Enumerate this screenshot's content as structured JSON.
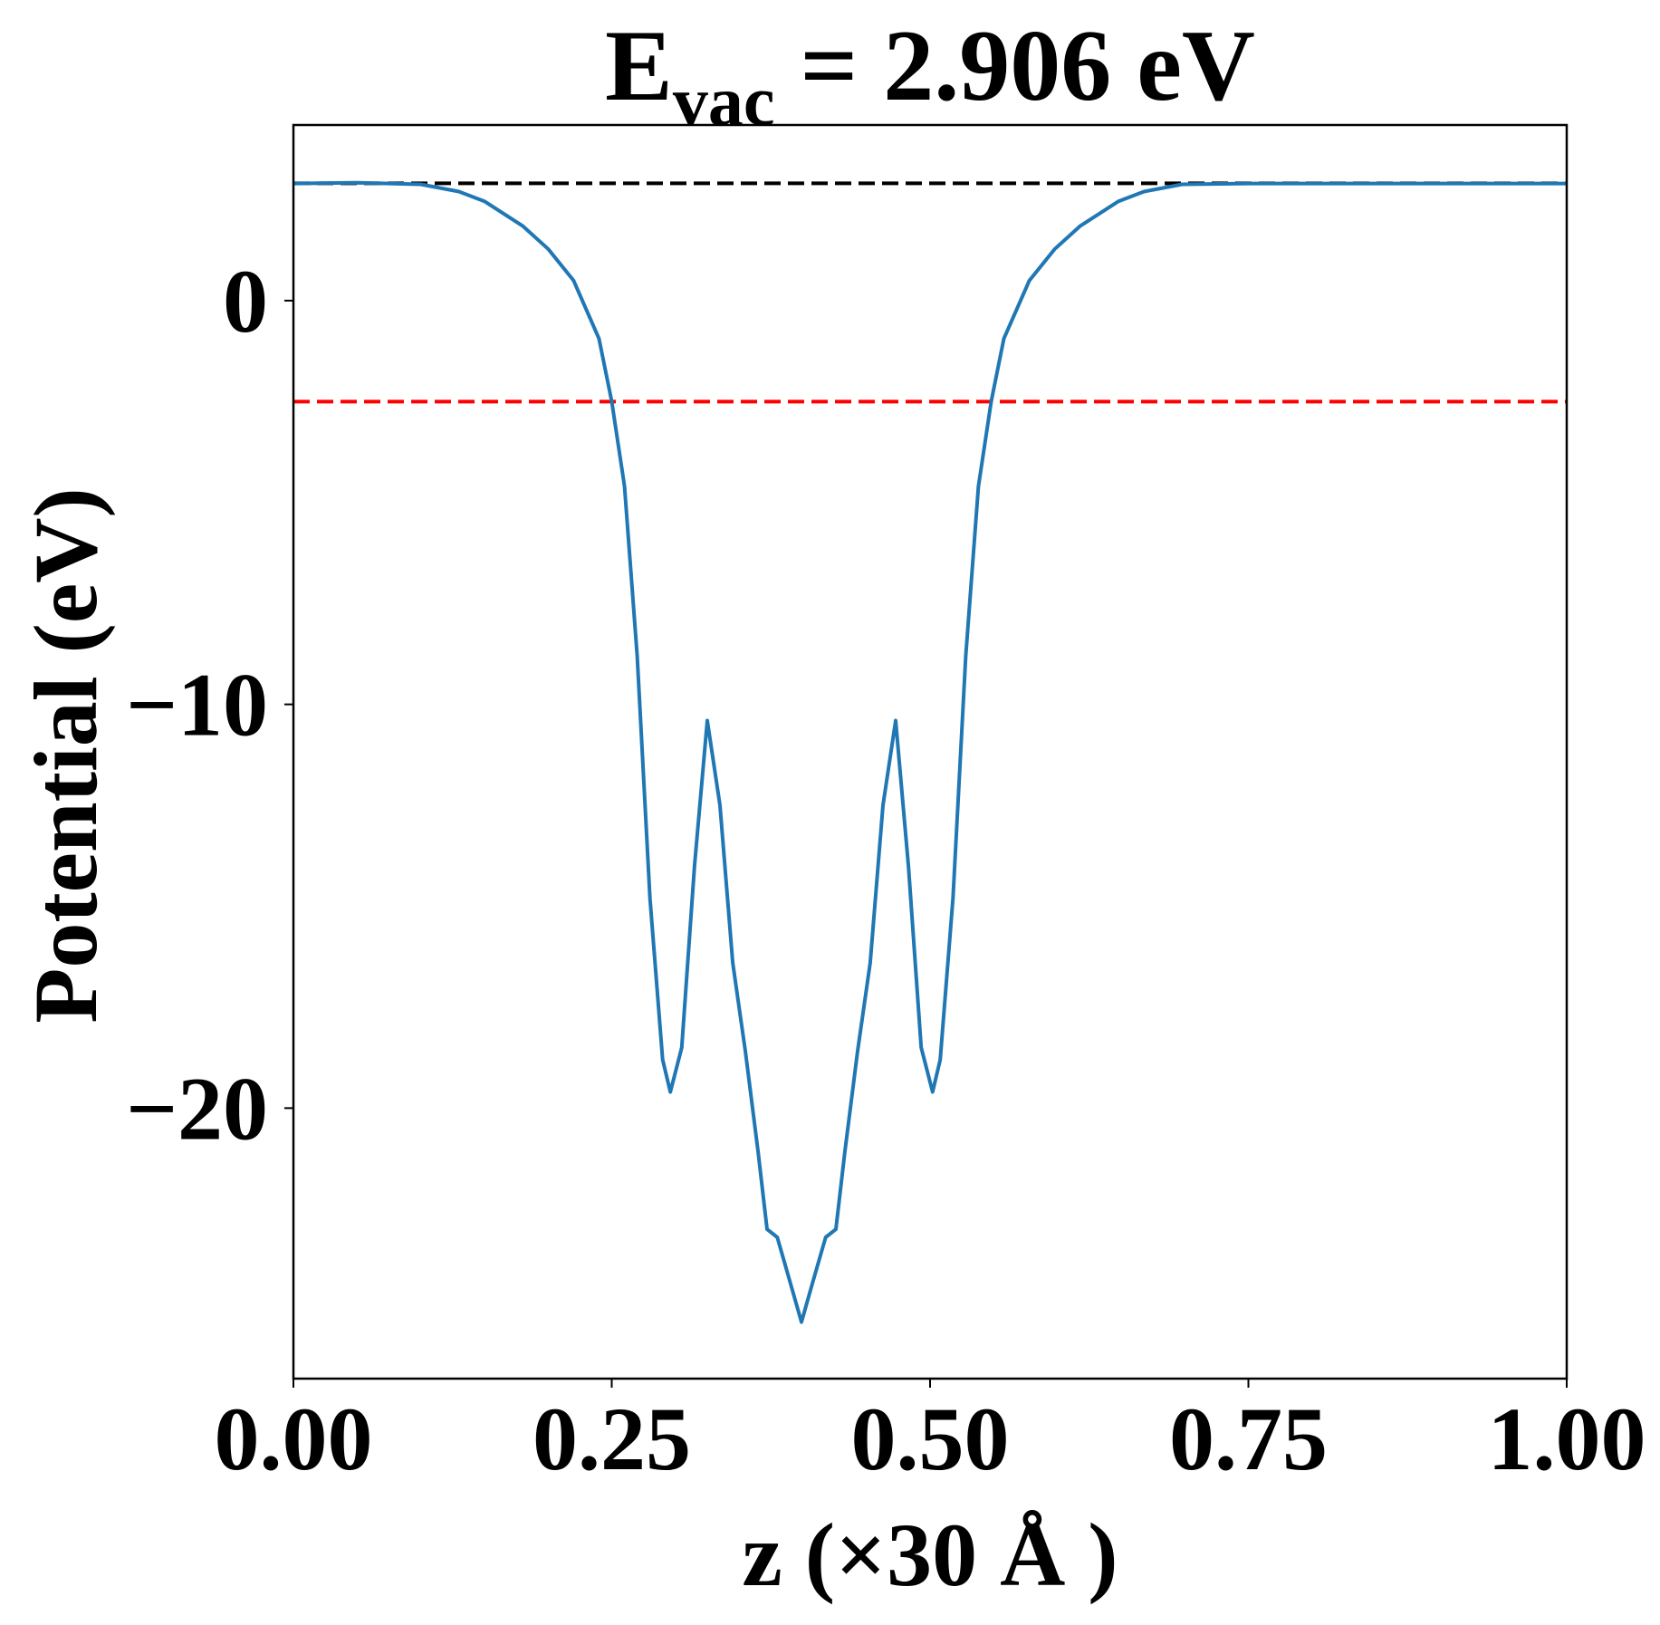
{
  "chart_data": {
    "type": "line",
    "title_parts": [
      "E",
      "vac",
      " = 2.906 eV"
    ],
    "x_label": "z (×30 Å )",
    "y_label": "Potential (eV)",
    "x": [
      0,
      0.05,
      0.1,
      0.13,
      0.15,
      0.18,
      0.2,
      0.22,
      0.24,
      0.25,
      0.26,
      0.27,
      0.28,
      0.29,
      0.296,
      0.305,
      0.315,
      0.325,
      0.335,
      0.345,
      0.355,
      0.365,
      0.372,
      0.38,
      0.39,
      0.399,
      0.408,
      0.418,
      0.426,
      0.433,
      0.443,
      0.453,
      0.463,
      0.473,
      0.483,
      0.493,
      0.502,
      0.508,
      0.518,
      0.528,
      0.538,
      0.548,
      0.558,
      0.578,
      0.598,
      0.618,
      0.648,
      0.668,
      0.698,
      0.75,
      0.8,
      0.9,
      1
    ],
    "series": [
      {
        "color": "#1f77b4",
        "values": [
          2.9,
          2.92,
          2.88,
          2.7,
          2.46,
          1.85,
          1.28,
          0.5,
          -0.94,
          -2.5,
          -4.6,
          -8.8,
          -14.8,
          -18.8,
          -19.6,
          -18.5,
          -14,
          -10.4,
          -12.5,
          -16.4,
          -18.6,
          -21.1,
          -23,
          -23.2,
          -24.3,
          -25.3,
          -24.3,
          -23.2,
          -23,
          -21.1,
          -18.6,
          -16.4,
          -12.5,
          -10.4,
          -14,
          -18.5,
          -19.6,
          -18.8,
          -14.8,
          -8.8,
          -4.6,
          -2.5,
          -0.94,
          0.5,
          1.28,
          1.85,
          2.46,
          2.7,
          2.88,
          2.9,
          2.9,
          2.9,
          2.9
        ]
      }
    ],
    "hlines": [
      {
        "value": 2.906,
        "color": "#000000"
      },
      {
        "value": -2.5,
        "color": "#ff0000"
      }
    ],
    "xlim": [
      0,
      1
    ],
    "xticks": [
      {
        "value": 0,
        "label": "0.00"
      },
      {
        "value": 0.25,
        "label": "0.25"
      },
      {
        "value": 0.5,
        "label": "0.50"
      },
      {
        "value": 0.75,
        "label": "0.75"
      },
      {
        "value": 1,
        "label": "1.00"
      }
    ],
    "ylim": [
      -26.7,
      4.35
    ],
    "yticks": [
      {
        "value": -20,
        "label": "−20"
      },
      {
        "value": -10,
        "label": "−10"
      },
      0
    ]
  }
}
